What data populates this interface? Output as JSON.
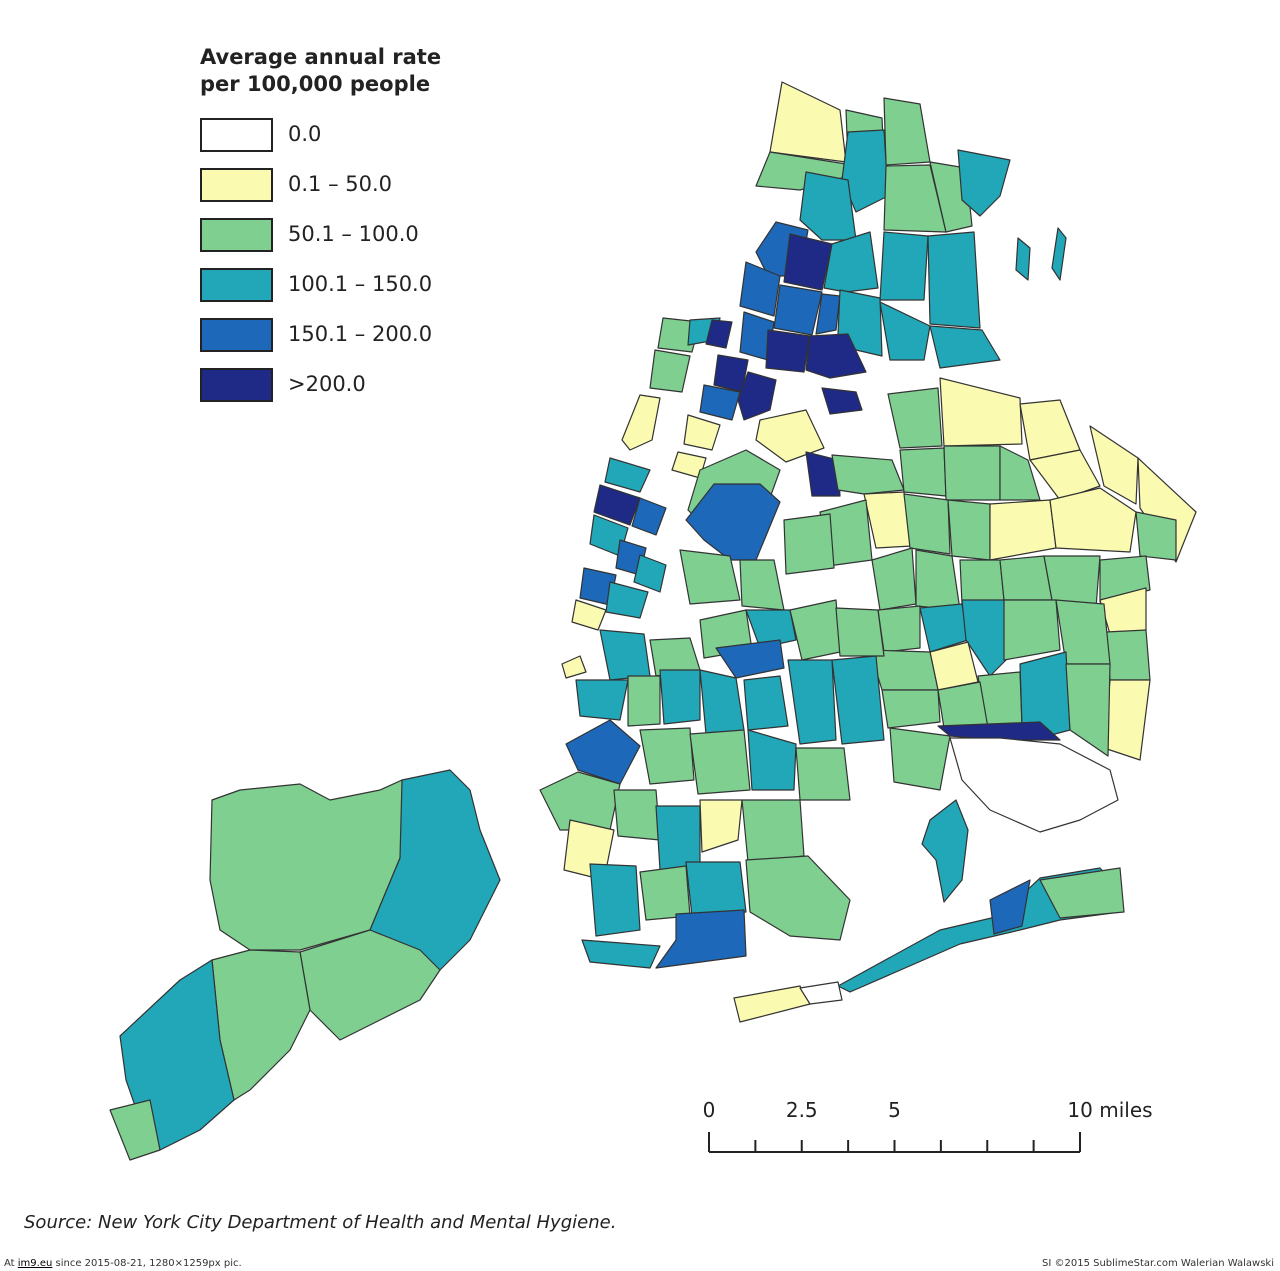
{
  "legend": {
    "title_line1": "Average annual rate",
    "title_line2": "per 100,000 people",
    "classes": [
      {
        "label": "0.0",
        "color": "#ffffff"
      },
      {
        "label": "0.1 – 50.0",
        "color": "#fafab0"
      },
      {
        "label": "50.1 – 100.0",
        "color": "#7ecf90"
      },
      {
        "label": "100.1 – 150.0",
        "color": "#22a7b8"
      },
      {
        "label": "150.1 – 200.0",
        "color": "#1d68b8"
      },
      {
        "label": ">200.0",
        "color": "#1e2a85"
      }
    ]
  },
  "scale_bar": {
    "labels": [
      "0",
      "2.5",
      "5",
      "10 miles"
    ],
    "values": [
      0,
      2.5,
      5,
      10
    ],
    "max": 10
  },
  "source": "Source: New York City Department of Health and Mental Hygiene.",
  "footer_left_prefix": "At",
  "footer_left_site": "im9.eu",
  "footer_left_rest": "since 2015-08-21, 1280×1259px pic.",
  "footer_right": "SI ©2015 SublimeStar.com Walerian Walawski"
}
